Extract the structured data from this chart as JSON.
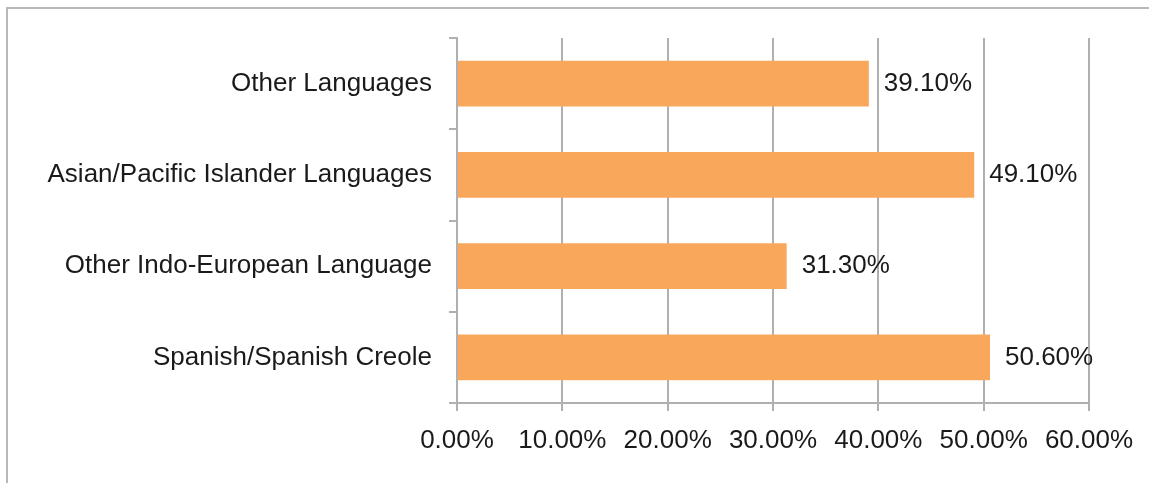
{
  "chart_data": {
    "type": "bar",
    "orientation": "horizontal",
    "categories": [
      "Other Languages",
      "Asian/Pacific Islander Languages",
      "Other Indo-European Language",
      "Spanish/Spanish Creole"
    ],
    "values": [
      39.1,
      49.1,
      31.3,
      50.6
    ],
    "color": "#f9a75b",
    "value_labels": [
      "39.10%",
      "49.10%",
      "31.30%",
      "50.60%"
    ],
    "xlim": [
      0,
      60
    ],
    "xticks": [
      {
        "value": 0,
        "label": "0.00%"
      },
      {
        "value": 10,
        "label": "10.00%"
      },
      {
        "value": 20,
        "label": "20.00%"
      },
      {
        "value": 30,
        "label": "30.00%"
      },
      {
        "value": 40,
        "label": "40.00%"
      },
      {
        "value": 50,
        "label": "50.00%"
      },
      {
        "value": 60,
        "label": "60.00%"
      }
    ],
    "grid": "x"
  }
}
